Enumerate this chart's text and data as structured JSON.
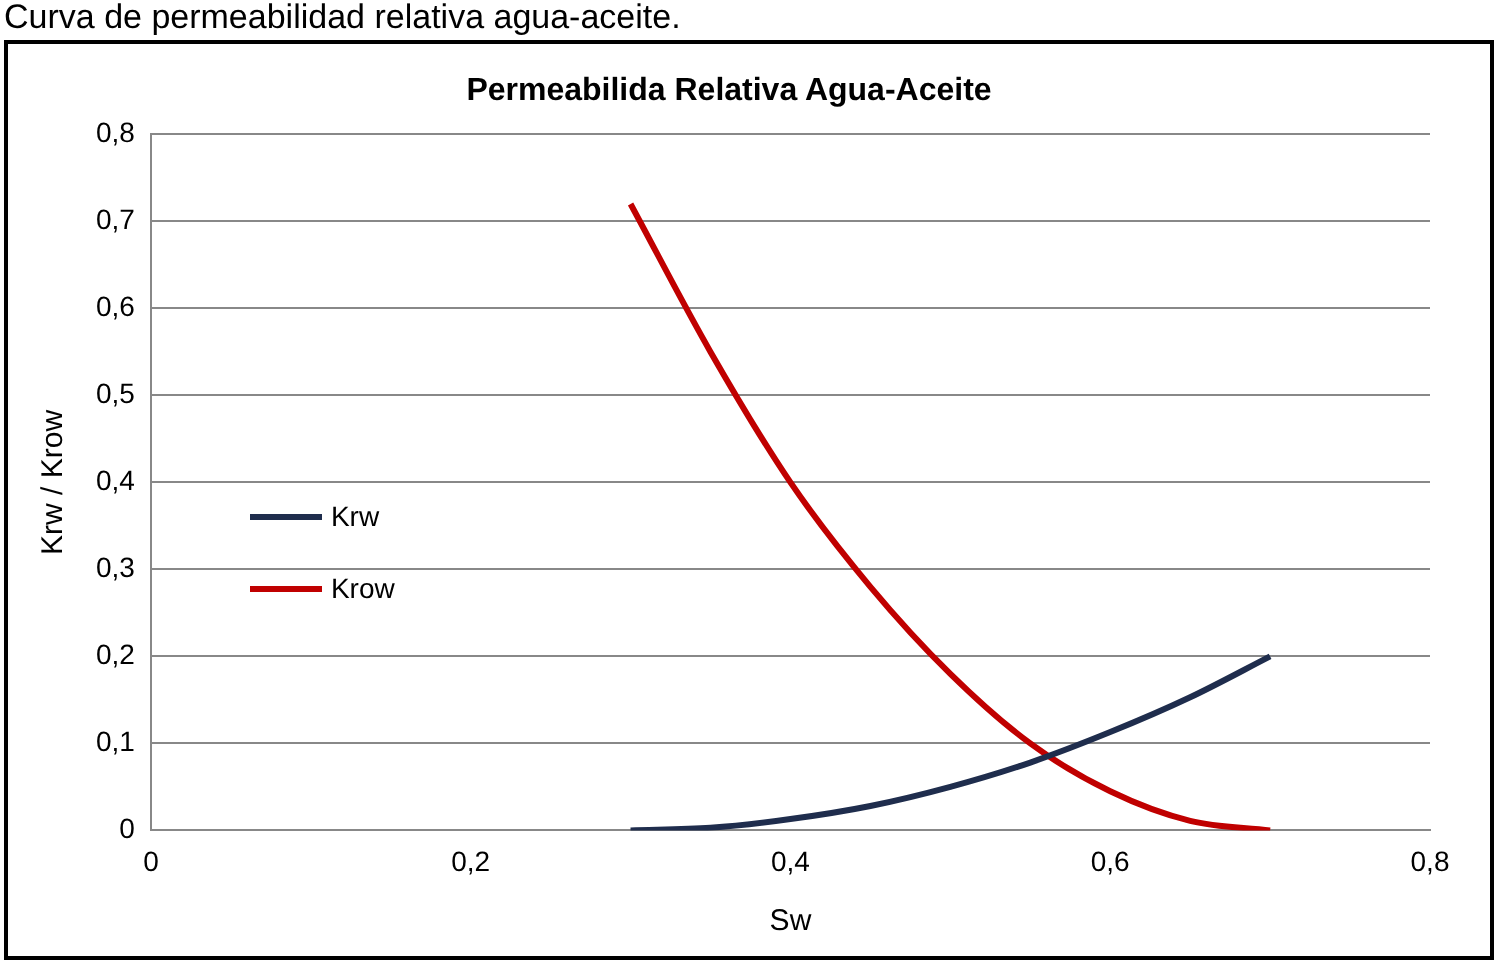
{
  "chart_data": {
    "type": "line",
    "title": "Permeabilida Relativa Agua-Aceite",
    "xlabel": "Sw",
    "ylabel": "Krw / Krow",
    "annotations": [
      "Curva de permeabilidad relativa agua-aceite."
    ],
    "x": [
      0.3,
      0.35,
      0.4,
      0.45,
      0.5,
      0.55,
      0.6,
      0.65,
      0.7
    ],
    "series": [
      {
        "name": "Krw",
        "color": "#1f2d4d",
        "values": [
          0,
          0.003,
          0.013,
          0.028,
          0.05,
          0.078,
          0.113,
          0.153,
          0.2
        ]
      },
      {
        "name": "Krow",
        "color": "#c00000",
        "values": [
          0.72,
          0.55,
          0.4,
          0.28,
          0.18,
          0.1,
          0.045,
          0.011,
          0
        ]
      }
    ],
    "xlim": [
      0,
      0.8
    ],
    "xticks": [
      0,
      {
        "value": 0.2,
        "label": "0,2"
      },
      {
        "value": 0.4,
        "label": "0,4"
      },
      {
        "value": 0.6,
        "label": "0,6"
      },
      {
        "value": 0.8,
        "label": "0,8"
      }
    ],
    "ylim": [
      0,
      0.8
    ],
    "yticks": [
      0,
      {
        "value": 0.1,
        "label": "0,1"
      },
      {
        "value": 0.2,
        "label": "0,2"
      },
      {
        "value": 0.3,
        "label": "0,3"
      },
      {
        "value": 0.4,
        "label": "0,4"
      },
      {
        "value": 0.5,
        "label": "0,5"
      },
      {
        "value": 0.6,
        "label": "0,6"
      },
      {
        "value": 0.7,
        "label": "0,7"
      },
      {
        "value": 0.8,
        "label": "0,8"
      }
    ],
    "grid": "y",
    "legend": "center left",
    "marker": "none",
    "line_style": "solid"
  }
}
